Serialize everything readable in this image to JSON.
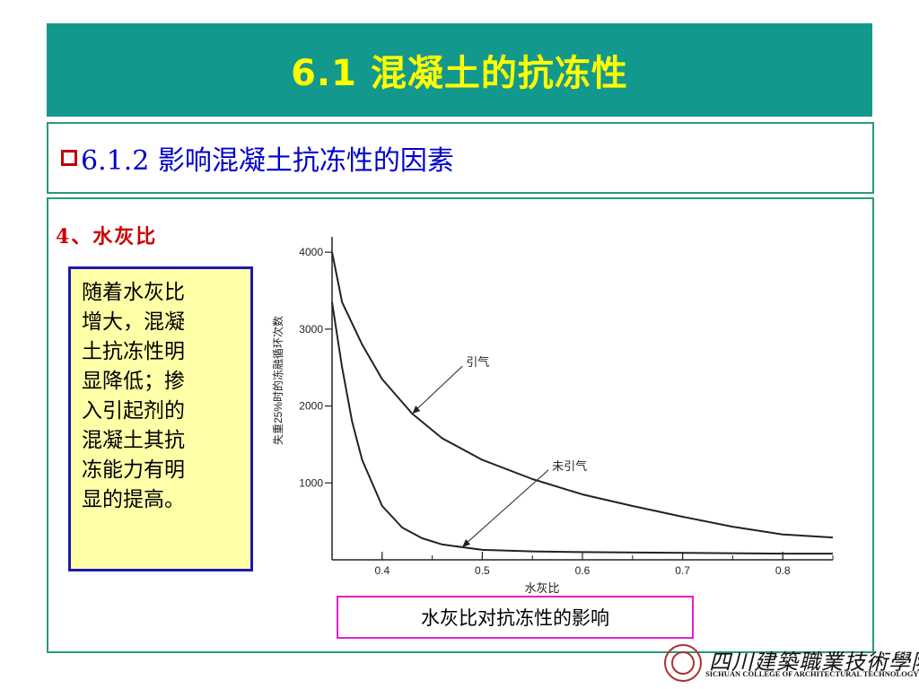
{
  "slide": {
    "title": "6.1  混凝土的抗冻性",
    "subtitle": "6.1.2 影响混凝土抗冻性的因素",
    "heading": "4、水灰比",
    "note_lines": [
      "随着水灰比",
      "增大，混凝",
      "土抗冻性明",
      "显降低；掺",
      "入引起剂的",
      "混凝土其抗",
      "冻能力有明",
      "显的提高。"
    ],
    "caption": "水灰比对抗冻性的影响",
    "logo_cn": "四川建築職業技術學院",
    "logo_en": "SICHUAN COLLEGE OF ARCHITECTURAL TECHNOLOGY",
    "colors": {
      "title_bg": "#13988e",
      "title_text": "#ffff00",
      "subtitle_text": "#0000cc",
      "heading": "#cc0000",
      "note_bg": "#ffffa8",
      "note_border": "#1a1ab0",
      "caption_border": "#e020d0"
    }
  },
  "chart_data": {
    "type": "line",
    "title": "",
    "xlabel": "水灰比",
    "ylabel": "失重25%时的冻融循环次数",
    "xlim": [
      0.35,
      0.85
    ],
    "ylim": [
      0,
      4200
    ],
    "xticks": [
      "0.4",
      "0.5",
      "0.6",
      "0.7",
      "0.8"
    ],
    "yticks": [
      "1000",
      "2000",
      "3000",
      "4000"
    ],
    "grid": false,
    "series": [
      {
        "name": "引气",
        "x": [
          0.35,
          0.36,
          0.38,
          0.4,
          0.43,
          0.46,
          0.5,
          0.55,
          0.6,
          0.65,
          0.7,
          0.75,
          0.8,
          0.85
        ],
        "y": [
          4000,
          3350,
          2800,
          2350,
          1900,
          1580,
          1300,
          1050,
          850,
          700,
          560,
          430,
          330,
          290
        ]
      },
      {
        "name": "未引气",
        "x": [
          0.35,
          0.36,
          0.37,
          0.38,
          0.4,
          0.42,
          0.44,
          0.46,
          0.5,
          0.55,
          0.6,
          0.7,
          0.8,
          0.85
        ],
        "y": [
          3350,
          2500,
          1800,
          1300,
          700,
          420,
          280,
          200,
          130,
          110,
          100,
          90,
          80,
          80
        ]
      }
    ],
    "annotations": [
      {
        "text": "引气",
        "series": 0,
        "x": 0.43
      },
      {
        "text": "未引气",
        "series": 1,
        "x": 0.48
      }
    ]
  }
}
